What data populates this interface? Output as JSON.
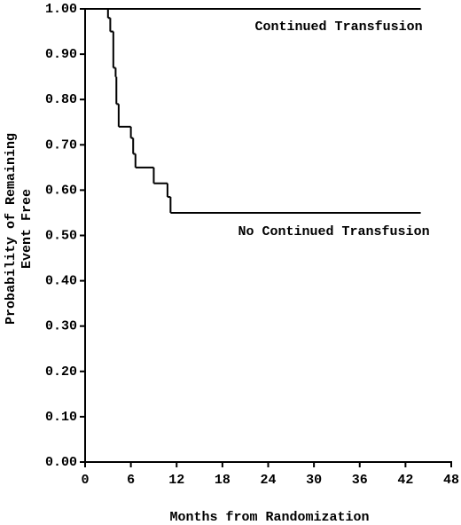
{
  "chart_data": {
    "type": "line",
    "drawstyle": "steps-post",
    "xlabel": "Months from Randomization",
    "ylabel": [
      "Probability of Remaining",
      "Event Free"
    ],
    "xlim": [
      0,
      48
    ],
    "xticks": [
      0,
      6,
      12,
      18,
      24,
      30,
      36,
      42,
      48
    ],
    "ylim": [
      0,
      1
    ],
    "yticks": [
      {
        "value": 0,
        "label": "0.00"
      },
      {
        "value": 0.1,
        "label": "0.10"
      },
      {
        "value": 0.2,
        "label": "0.20"
      },
      {
        "value": 0.3,
        "label": "0.30"
      },
      {
        "value": 0.4,
        "label": "0.40"
      },
      {
        "value": 0.5,
        "label": "0.50"
      },
      {
        "value": 0.6,
        "label": "0.60"
      },
      {
        "value": 0.7,
        "label": "0.70"
      },
      {
        "value": 0.8,
        "label": "0.80"
      },
      {
        "value": 0.9,
        "label": "0.90"
      },
      {
        "value": 1,
        "label": "1.00"
      }
    ],
    "series": [
      {
        "name": "Continued Transfusion",
        "color": "#000000",
        "x": [
          0,
          44
        ],
        "values": [
          1,
          1
        ]
      },
      {
        "name": "No Continued Transfusion",
        "color": "#000000",
        "x": [
          0,
          3,
          3.3,
          3.7,
          4,
          4.1,
          4.4,
          6,
          6.3,
          6.6,
          9,
          10.8,
          11.2,
          44
        ],
        "values": [
          1,
          0.98,
          0.95,
          0.87,
          0.85,
          0.79,
          0.74,
          0.715,
          0.68,
          0.65,
          0.615,
          0.585,
          0.55,
          0.55
        ]
      }
    ]
  }
}
